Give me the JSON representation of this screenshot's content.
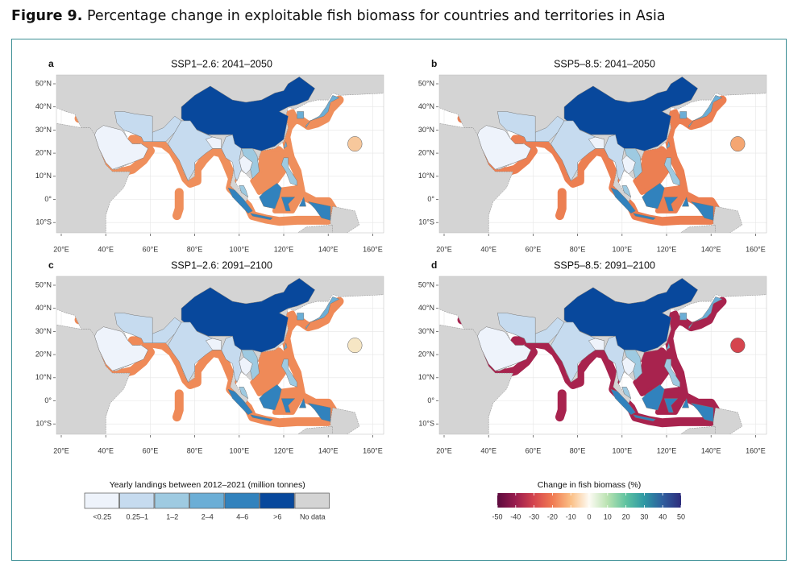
{
  "figure": {
    "label": "Figure 9.",
    "title": "Percentage change in exploitable fish biomass for countries and territories in Asia"
  },
  "panels": [
    {
      "letter": "a",
      "title": "SSP1–2.6: 2041–2050"
    },
    {
      "letter": "b",
      "title": "SSP5–8.5: 2041–2050"
    },
    {
      "letter": "c",
      "title": "SSP1–2.6: 2091–2100"
    },
    {
      "letter": "d",
      "title": "SSP5–8.5: 2091–2100"
    }
  ],
  "map_axes": {
    "xticks": [
      {
        "value": 20,
        "label": "20°E"
      },
      {
        "value": 40,
        "label": "40°E"
      },
      {
        "value": 60,
        "label": "60°E"
      },
      {
        "value": 80,
        "label": "80°E"
      },
      {
        "value": 100,
        "label": "100°E"
      },
      {
        "value": 120,
        "label": "120°E"
      },
      {
        "value": 140,
        "label": "140°E"
      },
      {
        "value": 160,
        "label": "160°E"
      }
    ],
    "yticks": [
      {
        "value": 50,
        "label": "50°N"
      },
      {
        "value": 40,
        "label": "40°N"
      },
      {
        "value": 30,
        "label": "30°N"
      },
      {
        "value": 20,
        "label": "20°N"
      },
      {
        "value": 10,
        "label": "10°N"
      },
      {
        "value": 0,
        "label": "0°"
      },
      {
        "value": -10,
        "label": "10°S"
      }
    ]
  },
  "landings_legend": {
    "title": "Yearly landings between 2012–2021 (million tonnes)",
    "items": [
      {
        "label": "<0.25",
        "color": "#eef3fb"
      },
      {
        "label": "0.25–1",
        "color": "#c6dbef"
      },
      {
        "label": "1–2",
        "color": "#9ecae1"
      },
      {
        "label": "2–4",
        "color": "#6baed6"
      },
      {
        "label": "4–6",
        "color": "#3182bd"
      },
      {
        "label": ">6",
        "color": "#08489c"
      },
      {
        "label": "No data",
        "color": "#d4d4d4"
      }
    ]
  },
  "biomass_legend": {
    "title": "Change in fish biomass (%)",
    "ticks": [
      -50,
      -40,
      -30,
      -20,
      -10,
      0,
      10,
      20,
      30,
      40,
      50
    ],
    "colors": [
      "#5c0a3e",
      "#9a1c4e",
      "#d5454e",
      "#f07a52",
      "#fbbf85",
      "#fdfbf4",
      "#b9e2b0",
      "#5fc3a0",
      "#2e98a4",
      "#2f5e9e",
      "#2e2d7c"
    ]
  }
}
